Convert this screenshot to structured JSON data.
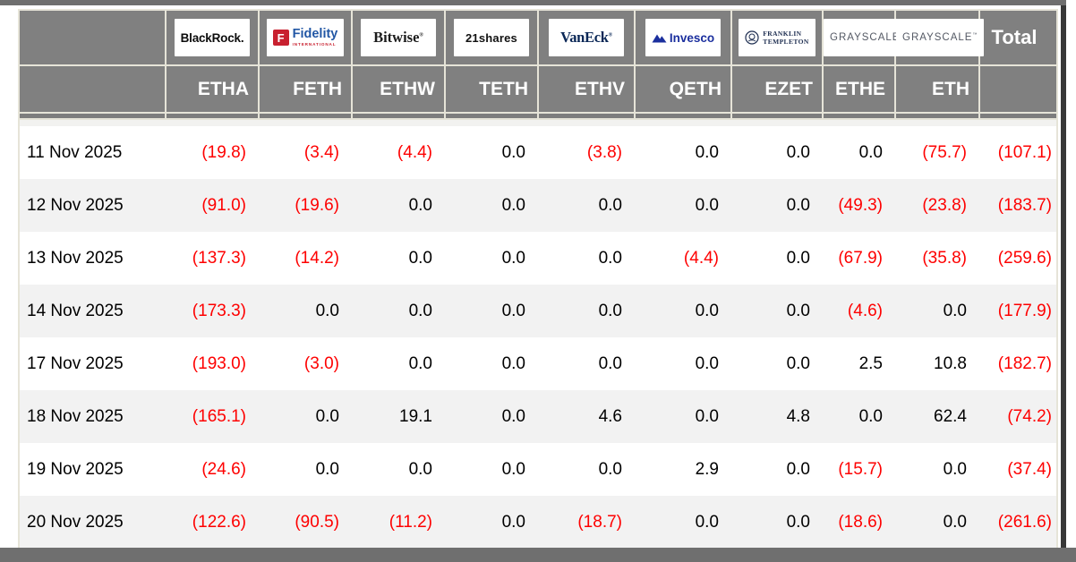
{
  "colors": {
    "header_bg": "#808080",
    "band": "#6f6f6f",
    "border": "#e6e4d8",
    "alt_row": "#f2f2f2",
    "negative": "#fe0000",
    "positive": "#000000",
    "fidelity_red": "#c8202f",
    "fidelity_blue": "#2257a5",
    "invesco_blue": "#1b2f9e",
    "vaneck_navy": "#0a2756",
    "franklin_navy": "#1d2d50",
    "grayscale_gray": "#545964"
  },
  "table": {
    "total_label": "Total",
    "columns": [
      {
        "ticker": "ETHA",
        "issuer": "BlackRock"
      },
      {
        "ticker": "FETH",
        "issuer": "Fidelity International"
      },
      {
        "ticker": "ETHW",
        "issuer": "Bitwise"
      },
      {
        "ticker": "TETH",
        "issuer": "21shares"
      },
      {
        "ticker": "ETHV",
        "issuer": "VanEck"
      },
      {
        "ticker": "QETH",
        "issuer": "Invesco"
      },
      {
        "ticker": "EZET",
        "issuer": "Franklin Templeton"
      },
      {
        "ticker": "ETHE",
        "issuer": "Grayscale"
      },
      {
        "ticker": "ETH",
        "issuer": "Grayscale"
      }
    ],
    "logos": {
      "blackrock": {
        "text": "BlackRock."
      },
      "fidelity": {
        "mark": "F",
        "name": "Fidelity",
        "sub": "INTERNATIONAL"
      },
      "bitwise": {
        "text": "Bitwise",
        "reg": "®"
      },
      "shares21": {
        "text": "21shares"
      },
      "vaneck": {
        "text": "VanEck",
        "reg": "®"
      },
      "invesco": {
        "text": "Invesco"
      },
      "franklin": {
        "line1": "FRANKLIN",
        "line2": "TEMPLETON"
      },
      "grayscale_ethe": {
        "text": "GRAYSCALE",
        "tm": "™"
      },
      "grayscale_eth": {
        "text": "GRAYSCALE",
        "tm": "™"
      }
    },
    "rows": [
      {
        "date": "11 Nov 2025",
        "values": [
          "(19.8)",
          "(3.4)",
          "(4.4)",
          "0.0",
          "(3.8)",
          "0.0",
          "0.0",
          "0.0",
          "(75.7)"
        ],
        "total": "(107.1)"
      },
      {
        "date": "12 Nov 2025",
        "values": [
          "(91.0)",
          "(19.6)",
          "0.0",
          "0.0",
          "0.0",
          "0.0",
          "0.0",
          "(49.3)",
          "(23.8)"
        ],
        "total": "(183.7)"
      },
      {
        "date": "13 Nov 2025",
        "values": [
          "(137.3)",
          "(14.2)",
          "0.0",
          "0.0",
          "0.0",
          "(4.4)",
          "0.0",
          "(67.9)",
          "(35.8)"
        ],
        "total": "(259.6)"
      },
      {
        "date": "14 Nov 2025",
        "values": [
          "(173.3)",
          "0.0",
          "0.0",
          "0.0",
          "0.0",
          "0.0",
          "0.0",
          "(4.6)",
          "0.0"
        ],
        "total": "(177.9)"
      },
      {
        "date": "17 Nov 2025",
        "values": [
          "(193.0)",
          "(3.0)",
          "0.0",
          "0.0",
          "0.0",
          "0.0",
          "0.0",
          "2.5",
          "10.8"
        ],
        "total": "(182.7)"
      },
      {
        "date": "18 Nov 2025",
        "values": [
          "(165.1)",
          "0.0",
          "19.1",
          "0.0",
          "4.6",
          "0.0",
          "4.8",
          "0.0",
          "62.4"
        ],
        "total": "(74.2)"
      },
      {
        "date": "19 Nov 2025",
        "values": [
          "(24.6)",
          "0.0",
          "0.0",
          "0.0",
          "0.0",
          "2.9",
          "0.0",
          "(15.7)",
          "0.0"
        ],
        "total": "(37.4)"
      },
      {
        "date": "20 Nov 2025",
        "values": [
          "(122.6)",
          "(90.5)",
          "(11.2)",
          "0.0",
          "(18.7)",
          "0.0",
          "0.0",
          "(18.6)",
          "0.0"
        ],
        "total": "(261.6)"
      }
    ]
  }
}
